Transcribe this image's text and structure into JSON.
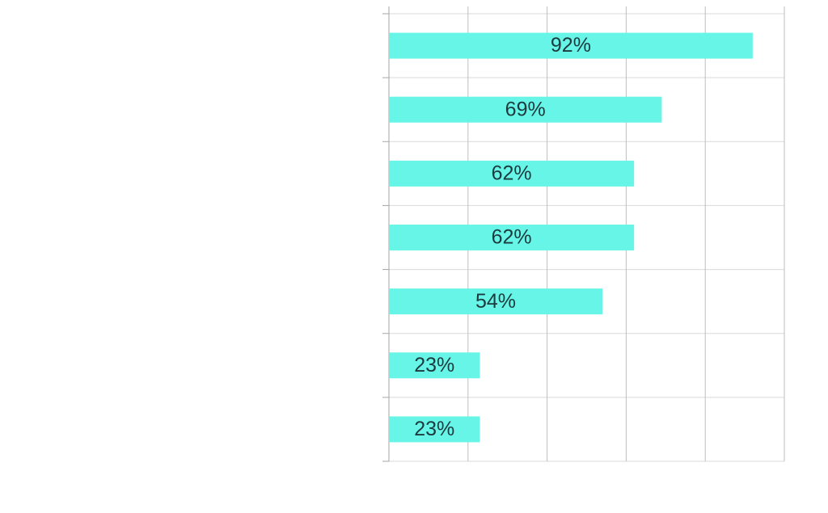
{
  "chart_data": {
    "type": "bar",
    "orientation": "horizontal",
    "categories": [
      null,
      null,
      null,
      null,
      null,
      null,
      null
    ],
    "values": [
      92,
      69,
      62,
      62,
      54,
      23,
      23
    ],
    "value_labels": [
      "92%",
      "69%",
      "62%",
      "62%",
      "54%",
      "23%",
      "23%"
    ],
    "color": "#66f5e6",
    "xlim": [
      0,
      100
    ],
    "xticks": [
      0,
      20,
      40,
      60,
      80,
      100
    ],
    "grid": true
  }
}
